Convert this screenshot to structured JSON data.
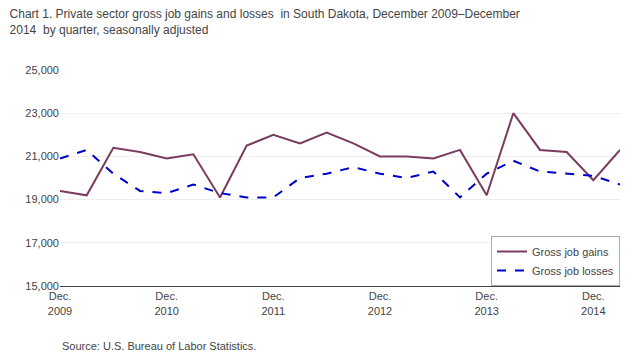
{
  "chart_data": {
    "type": "line",
    "title": "Chart 1. Private sector gross job gains and losses  in South Dakota, December 2009–December\n2014  by quarter, seasonally adjusted",
    "annotations": [
      {
        "text": "Source: U.S. Bureau of Labor Statistics."
      }
    ],
    "categories": [
      "Dec.\n2009",
      null,
      null,
      null,
      "Dec.\n2010",
      null,
      null,
      null,
      "Dec.\n2011",
      null,
      null,
      null,
      "Dec.\n2012",
      null,
      null,
      null,
      "Dec.\n2013",
      null,
      null,
      null,
      "Dec.\n2014",
      null
    ],
    "series": [
      {
        "name": "Gross job gains",
        "color": "#7B3B5E",
        "line_style": "solid",
        "values": [
          19400,
          19200,
          21400,
          21200,
          20900,
          21100,
          19100,
          21500,
          22000,
          21600,
          22100,
          21600,
          21000,
          21000,
          20900,
          21300,
          19200,
          23000,
          21300,
          21200,
          19900,
          21300
        ]
      },
      {
        "name": "Gross job losses",
        "color": "#0000CC",
        "line_style": "dashed",
        "values": [
          20900,
          21300,
          20200,
          19400,
          19300,
          19700,
          19300,
          19100,
          19100,
          20000,
          20200,
          20500,
          20200,
          20000,
          20300,
          19100,
          20200,
          20800,
          20300,
          20200,
          20100,
          19700
        ]
      }
    ],
    "ylim": [
      15000,
      25000
    ],
    "yticks": [
      {
        "value": 15000,
        "label": "15,000"
      },
      {
        "value": 17000,
        "label": "17,000"
      },
      {
        "value": 19000,
        "label": "19,000"
      },
      {
        "value": 21000,
        "label": "21,000"
      },
      {
        "value": 23000,
        "label": "23,000"
      },
      {
        "value": 25000,
        "label": "25,000"
      }
    ],
    "grid": true,
    "legend": "lower right"
  }
}
